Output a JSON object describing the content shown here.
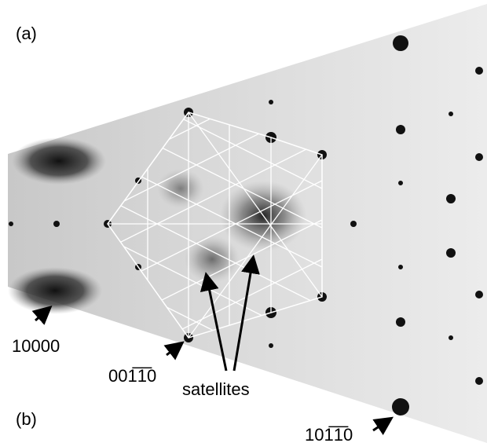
{
  "labels": {
    "panel_a": "(a)",
    "panel_b": "(b)",
    "reflection_10000": "10000",
    "reflection_00110": "001̅1̅0",
    "satellites": "satellites",
    "reflection_10110": "101̅1̅0"
  }
}
